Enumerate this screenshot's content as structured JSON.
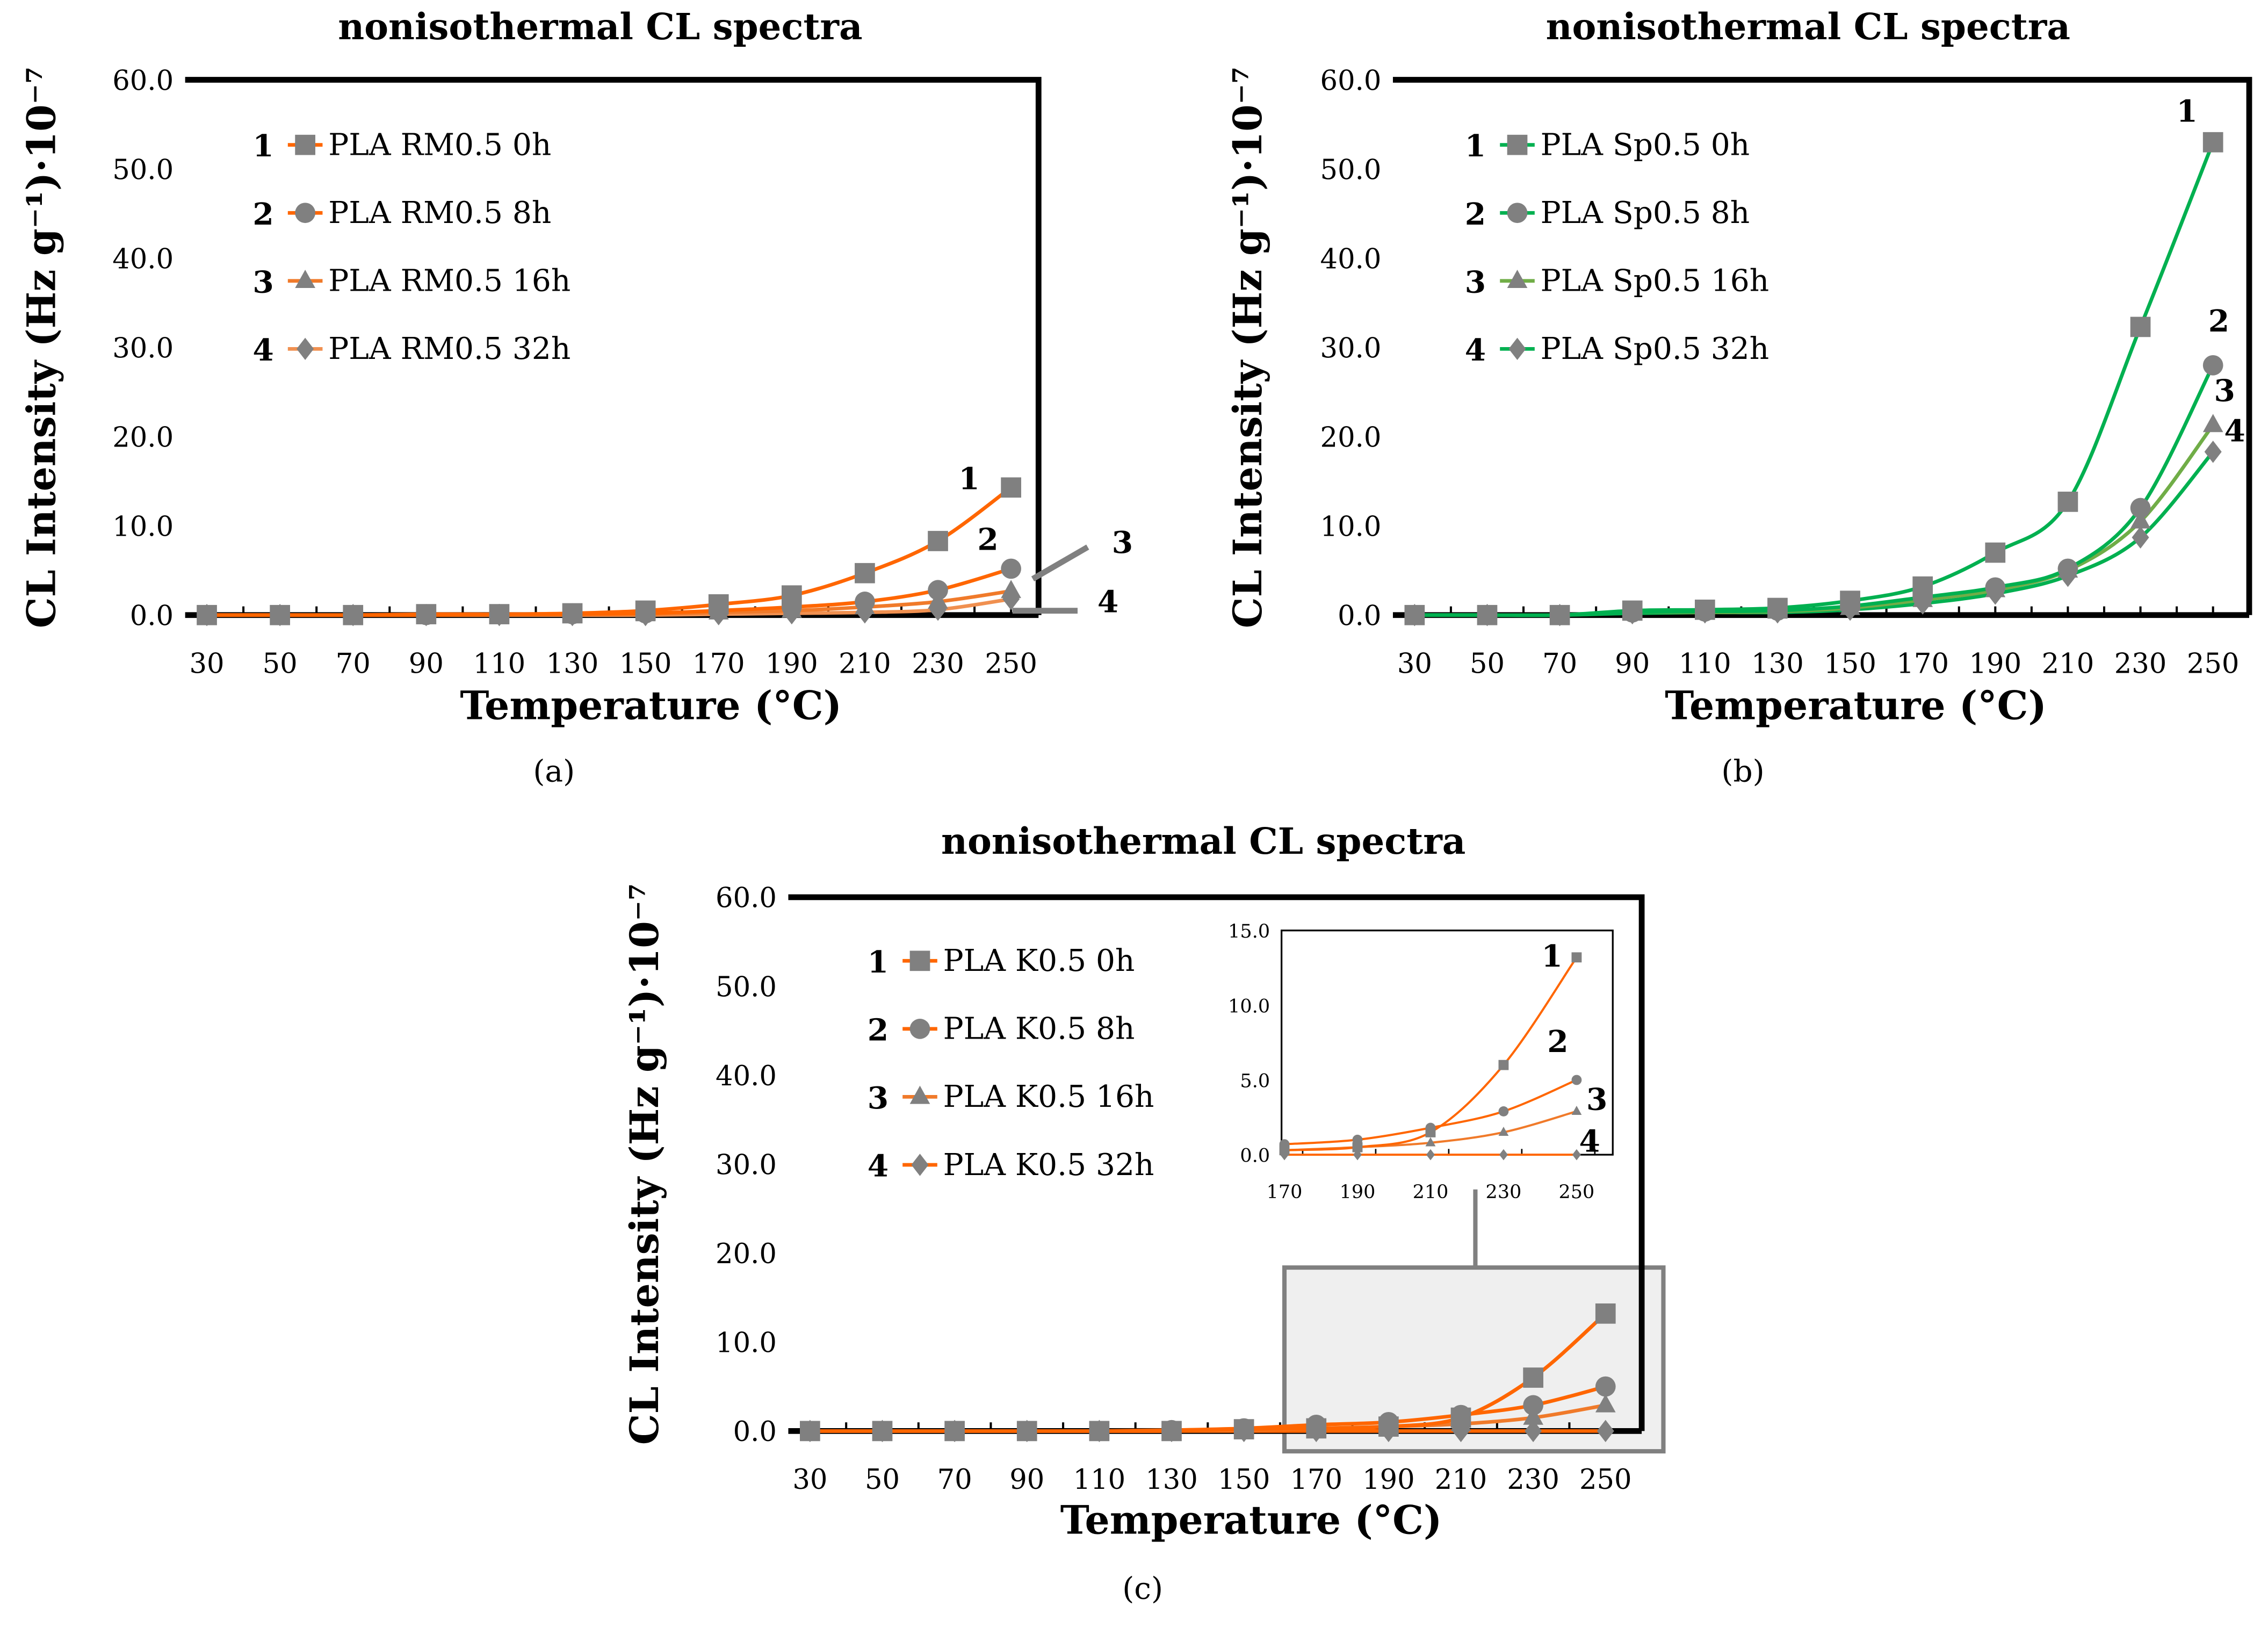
{
  "chart_data": [
    {
      "type": "line",
      "panel": "(a)",
      "title": "nonisothermal CL spectra",
      "xlabel": "Temperature (°C)",
      "ylabel": "CL Intensity (Hz g⁻¹)·10⁻⁷",
      "x": [
        30,
        50,
        70,
        90,
        110,
        130,
        150,
        170,
        190,
        210,
        230,
        250
      ],
      "ylim": [
        0,
        60
      ],
      "yticks": [
        "0.0",
        "10.0",
        "20.0",
        "30.0",
        "40.0",
        "50.0",
        "60.0"
      ],
      "legend_position": "top-left",
      "series": [
        {
          "num": "1",
          "name": "PLA RM0.5 0h",
          "marker": "square",
          "color": "#FF6600",
          "values": [
            0,
            0,
            0,
            0.1,
            0.1,
            0.2,
            0.5,
            1.2,
            2.2,
            4.7,
            8.3,
            14.3
          ]
        },
        {
          "num": "2",
          "name": "PLA RM0.5 8h",
          "marker": "circle",
          "color": "#FF6600",
          "values": [
            0,
            0,
            0,
            0,
            0.1,
            0.1,
            0.2,
            0.5,
            0.9,
            1.5,
            2.8,
            5.2
          ]
        },
        {
          "num": "3",
          "name": "PLA RM0.5 16h",
          "marker": "triangle",
          "color": "#F07A2A",
          "values": [
            0,
            0,
            0,
            0,
            0,
            0.1,
            0.1,
            0.3,
            0.5,
            0.9,
            1.5,
            2.7
          ]
        },
        {
          "num": "4",
          "name": "PLA RM0.5 32h",
          "marker": "diamond",
          "color": "#F09050",
          "values": [
            0,
            0,
            0,
            0,
            0,
            0,
            0,
            0.1,
            0.2,
            0.3,
            0.6,
            1.8
          ]
        }
      ]
    },
    {
      "type": "line",
      "panel": "(b)",
      "title": "nonisothermal CL spectra",
      "xlabel": "Temperature (°C)",
      "ylabel": "CL Intensity (Hz g⁻¹)·10⁻⁷",
      "x": [
        30,
        50,
        70,
        90,
        110,
        130,
        150,
        170,
        190,
        210,
        230,
        250
      ],
      "ylim": [
        0,
        60
      ],
      "yticks": [
        "0.0",
        "10.0",
        "20.0",
        "30.0",
        "40.0",
        "50.0",
        "60.0"
      ],
      "legend_position": "top-left",
      "series": [
        {
          "num": "1",
          "name": "PLA Sp0.5 0h",
          "marker": "square",
          "color": "#00B050",
          "values": [
            0,
            0,
            0,
            0.5,
            0.6,
            0.8,
            1.6,
            3.2,
            7.0,
            12.7,
            32.3,
            53.0
          ]
        },
        {
          "num": "2",
          "name": "PLA Sp0.5 8h",
          "marker": "circle",
          "color": "#00B050",
          "values": [
            0,
            0,
            0,
            0.3,
            0.4,
            0.5,
            1.0,
            2.0,
            3.1,
            5.2,
            12.0,
            28.0
          ]
        },
        {
          "num": "3",
          "name": "PLA Sp0.5 16h",
          "marker": "triangle",
          "color": "#70AD47",
          "values": [
            0,
            0,
            0,
            0.3,
            0.3,
            0.4,
            0.8,
            1.7,
            2.8,
            5.0,
            10.5,
            21.3
          ]
        },
        {
          "num": "4",
          "name": "PLA Sp0.5 32h",
          "marker": "diamond",
          "color": "#00B050",
          "values": [
            0,
            0,
            0,
            0.2,
            0.3,
            0.3,
            0.6,
            1.3,
            2.4,
            4.4,
            8.7,
            18.3
          ]
        }
      ]
    },
    {
      "type": "line",
      "panel": "(c)",
      "title": "nonisothermal CL spectra",
      "xlabel": "Temperature (°C)",
      "ylabel": "CL Intensity (Hz g⁻¹)·10⁻⁷",
      "x": [
        30,
        50,
        70,
        90,
        110,
        130,
        150,
        170,
        190,
        210,
        230,
        250
      ],
      "ylim": [
        0,
        60
      ],
      "yticks": [
        "0.0",
        "10.0",
        "20.0",
        "30.0",
        "40.0",
        "50.0",
        "60.0"
      ],
      "legend_position": "top-left",
      "series": [
        {
          "num": "1",
          "name": "PLA K0.5 0h",
          "marker": "square",
          "color": "#FF6600",
          "values": [
            0,
            0,
            0,
            0,
            0,
            0,
            0.2,
            0.3,
            0.5,
            1.5,
            6.0,
            13.2
          ]
        },
        {
          "num": "2",
          "name": "PLA K0.5 8h",
          "marker": "circle",
          "color": "#FF6600",
          "values": [
            0,
            0,
            0,
            0,
            0,
            0.1,
            0.3,
            0.7,
            1.0,
            1.8,
            2.9,
            5.0
          ]
        },
        {
          "num": "3",
          "name": "PLA K0.5 16h",
          "marker": "triangle",
          "color": "#F07A2A",
          "values": [
            0,
            0,
            0,
            0,
            0,
            0,
            0.1,
            0.3,
            0.5,
            0.8,
            1.5,
            2.9
          ]
        },
        {
          "num": "4",
          "name": "PLA K0.5 32h",
          "marker": "diamond",
          "color": "#FF6600",
          "values": [
            0,
            0,
            0,
            0,
            0,
            0,
            0,
            0,
            0,
            0,
            0,
            0
          ]
        }
      ],
      "inset": {
        "x": [
          170,
          190,
          210,
          230,
          250
        ],
        "ylim": [
          0,
          15
        ],
        "yticks": [
          "0.0",
          "5.0",
          "10.0",
          "15.0"
        ],
        "xticks": [
          "170",
          "190",
          "210",
          "230",
          "250"
        ]
      }
    }
  ]
}
